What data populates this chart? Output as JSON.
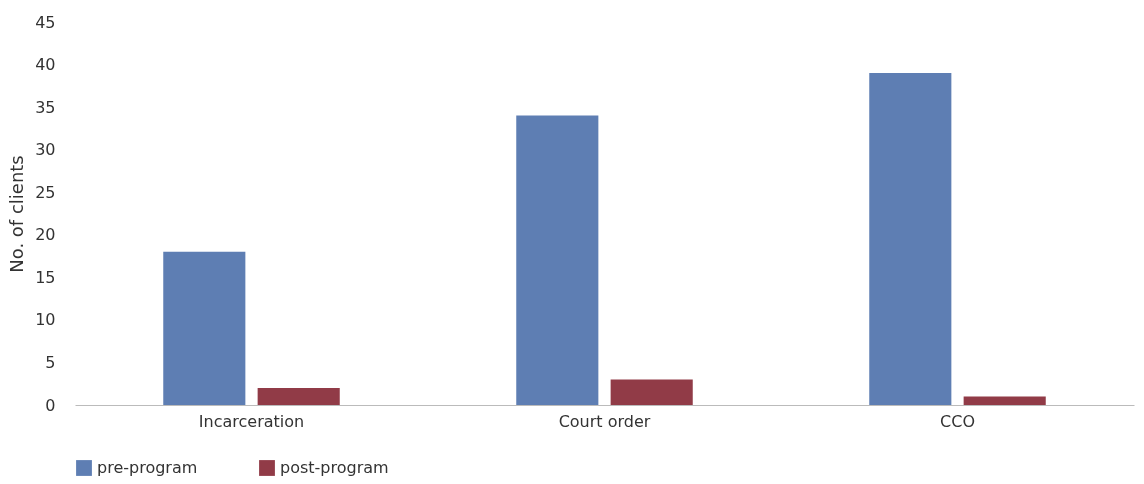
{
  "chart_data": {
    "type": "bar",
    "ylabel": "No. of clients",
    "categories": [
      "Incarceration",
      "Court order",
      "CCO"
    ],
    "series": [
      {
        "name": "pre-program",
        "color": "#5e7eb3",
        "values": [
          18,
          34,
          39
        ]
      },
      {
        "name": "post-program",
        "color": "#913b47",
        "values": [
          2,
          3,
          1
        ]
      }
    ],
    "ylim": [
      0,
      45
    ],
    "yticks": [
      0,
      5,
      10,
      15,
      20,
      25,
      30,
      35,
      40,
      45
    ],
    "grid": false,
    "legend": "bottom"
  }
}
